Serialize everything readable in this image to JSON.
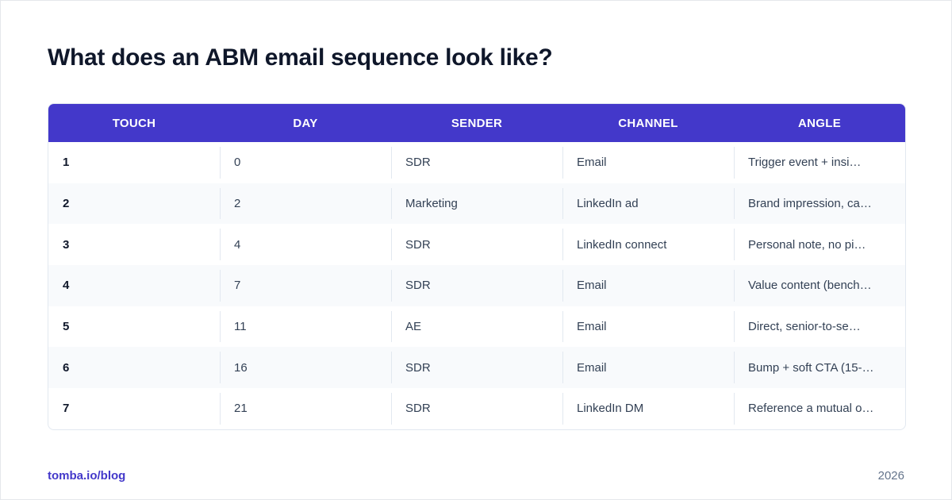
{
  "title": "What does an ABM email sequence look like?",
  "table": {
    "headers": [
      "TOUCH",
      "DAY",
      "SENDER",
      "CHANNEL",
      "ANGLE"
    ],
    "rows": [
      {
        "touch": "1",
        "day": "0",
        "sender": "SDR",
        "channel": "Email",
        "angle": "Trigger event + insi…"
      },
      {
        "touch": "2",
        "day": "2",
        "sender": "Marketing",
        "channel": "LinkedIn ad",
        "angle": "Brand impression, ca…"
      },
      {
        "touch": "3",
        "day": "4",
        "sender": "SDR",
        "channel": "LinkedIn connect",
        "angle": "Personal note, no pi…"
      },
      {
        "touch": "4",
        "day": "7",
        "sender": "SDR",
        "channel": "Email",
        "angle": "Value content (bench…"
      },
      {
        "touch": "5",
        "day": "11",
        "sender": "AE",
        "channel": "Email",
        "angle": "Direct, senior-to-se…"
      },
      {
        "touch": "6",
        "day": "16",
        "sender": "SDR",
        "channel": "Email",
        "angle": "Bump + soft CTA (15-…"
      },
      {
        "touch": "7",
        "day": "21",
        "sender": "SDR",
        "channel": "LinkedIn DM",
        "angle": "Reference a mutual o…"
      }
    ]
  },
  "footer": {
    "link": "tomba.io/blog",
    "year": "2026"
  },
  "colors": {
    "header_bg": "#4338ca",
    "accent": "#4338ca",
    "alt_row": "#f8fafc"
  }
}
